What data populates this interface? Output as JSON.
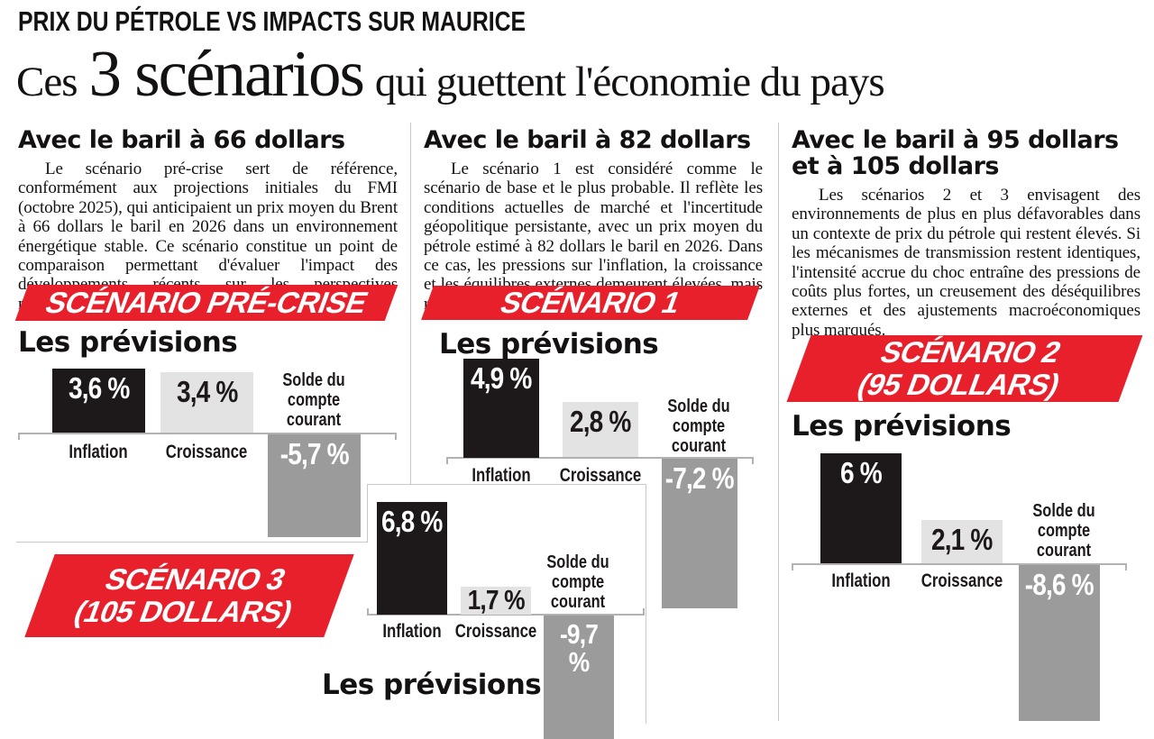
{
  "kicker": "PRIX DU PÉTROLE VS IMPACTS SUR MAURICE",
  "title": {
    "lead": "Ces",
    "big": "3 scénarios",
    "rest": "qui guettent l'économie du pays"
  },
  "columns": [
    {
      "heading": "Avec le baril à 66 dollars",
      "body": "Le scénario pré-crise sert de référence, conformément aux projections initiales du FMI (octobre 2025), qui anticipaient un prix moyen du Brent à 66 dollars le baril en 2026 dans un environnement énergétique stable. Ce scénario constitue un point de comparaison permettant d'évaluer l'impact des développements récents sur les perspectives macroéconomiques du pays."
    },
    {
      "heading": "Avec le baril à 82 dollars",
      "body": "Le scénario 1 est considéré comme le scénario de base et le plus probable. Il reflète les conditions actuelles de marché et l'incertitude géopolitique persistante, avec un prix moyen du pétrole estimé à 82 dollars le baril en 2026. Dans ce cas, les pressions sur l'inflation, la croissance et les équilibres externes demeurent élevées, mais restent globalement gérables."
    },
    {
      "heading": "Avec le baril à 95 dollars et à 105 dollars",
      "body": "Les scénarios 2 et 3 envisagent des environnements de plus en plus défavorables dans un contexte de prix du pétrole qui restent élevés. Si les mécanismes de transmission restent identiques, l'intensité accrue du choc entraîne des pressions de coûts plus fortes, un creusement des déséquilibres externes et des ajustements macroéconomiques plus marqués."
    }
  ],
  "chart_data": [
    {
      "type": "bar",
      "banner_line1": "SCÉNARIO PRÉ-CRISE",
      "banner_line2": "",
      "subtitle": "Les prévisions",
      "categories": [
        "Inflation",
        "Croissance",
        "Solde du compte courant"
      ],
      "values": [
        3.6,
        3.4,
        -5.7
      ],
      "value_labels": [
        "3,6 %",
        "3,4 %",
        "-5,7 %"
      ]
    },
    {
      "type": "bar",
      "banner_line1": "SCÉNARIO 1",
      "banner_line2": "",
      "subtitle": "Les prévisions",
      "categories": [
        "Inflation",
        "Croissance",
        "Solde du compte courant"
      ],
      "values": [
        4.9,
        2.8,
        -7.2
      ],
      "value_labels": [
        "4,9 %",
        "2,8 %",
        "-7,2 %"
      ]
    },
    {
      "type": "bar",
      "banner_line1": "SCÉNARIO 2",
      "banner_line2": "(95 DOLLARS)",
      "subtitle": "Les prévisions",
      "categories": [
        "Inflation",
        "Croissance",
        "Solde du compte courant"
      ],
      "values": [
        6,
        2.1,
        -8.6
      ],
      "value_labels": [
        "6 %",
        "2,1 %",
        "-8,6 %"
      ]
    },
    {
      "type": "bar",
      "banner_line1": "SCÉNARIO 3",
      "banner_line2": "(105 DOLLARS)",
      "subtitle": "Les prévisions",
      "categories": [
        "Inflation",
        "Croissance",
        "Solde du compte courant"
      ],
      "values": [
        6.8,
        1.7,
        -9.7
      ],
      "value_labels": [
        "6,8 %",
        "1,7 %",
        "-9,7 %"
      ]
    }
  ],
  "colors": {
    "banner_red": "#e8202c",
    "bar_inflation": "#1d191a",
    "bar_croissance": "#e4e3e3",
    "bar_solde": "#9c9b9b"
  }
}
